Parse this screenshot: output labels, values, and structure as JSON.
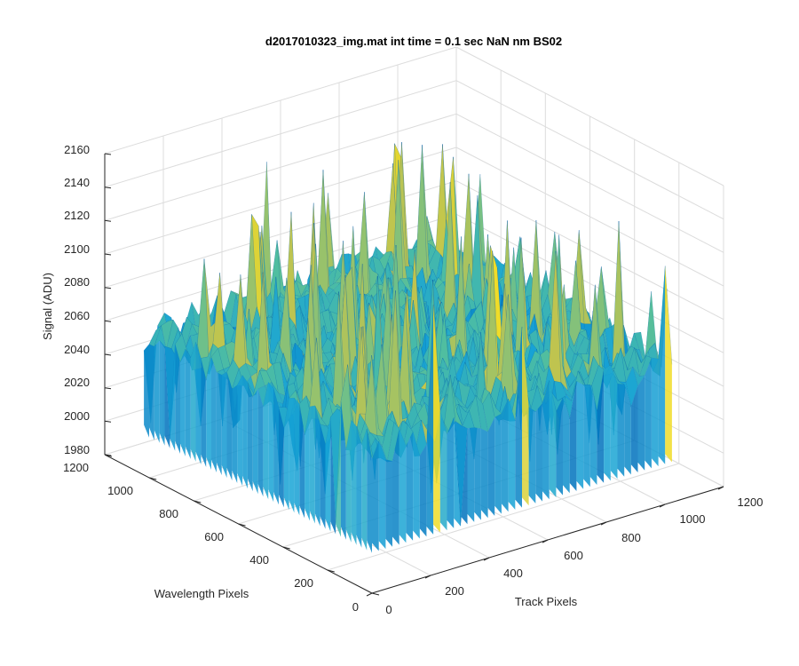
{
  "chart_data": {
    "type": "surface",
    "title": "d2017010323_img.mat int time = 0.1 sec  NaN nm BS02",
    "xlabel": "Track Pixels",
    "ylabel": "Wavelength Pixels",
    "zlabel": "Signal (ADU)",
    "xlim": [
      0,
      1200
    ],
    "ylim": [
      0,
      1200
    ],
    "zlim": [
      1980,
      2160
    ],
    "x_ticks": [
      "0",
      "200",
      "400",
      "600",
      "800",
      "1000",
      "1200"
    ],
    "y_ticks": [
      "0",
      "200",
      "400",
      "600",
      "800",
      "1000",
      "1200"
    ],
    "z_ticks": [
      "1980",
      "2000",
      "2020",
      "2040",
      "2060",
      "2080",
      "2100",
      "2120",
      "2140",
      "2160"
    ],
    "x_extent": [
      0,
      1024
    ],
    "y_extent": [
      0,
      1024
    ],
    "signal_mean": 2065,
    "signal_range": [
      2000,
      2145
    ],
    "grid": true,
    "colormap": "parula"
  }
}
